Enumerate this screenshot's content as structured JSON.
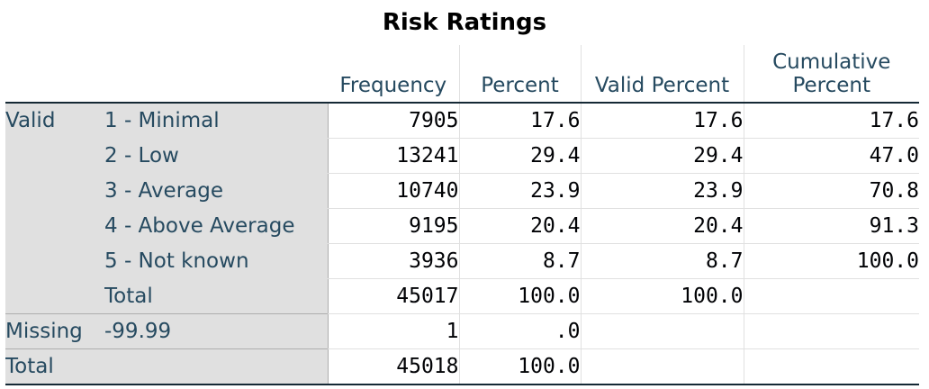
{
  "title": "Risk Ratings",
  "headers": [
    "Frequency",
    "Percent",
    "Valid Percent",
    "Cumulative",
    "Percent"
  ],
  "groups": {
    "valid": "Valid",
    "missing": "Missing",
    "total": "Total"
  },
  "rows": [
    {
      "label": "1 - Minimal",
      "frequency": "7905",
      "percent": "17.6",
      "valid_percent": "17.6",
      "cumulative_percent": "17.6"
    },
    {
      "label": "2 - Low",
      "frequency": "13241",
      "percent": "29.4",
      "valid_percent": "29.4",
      "cumulative_percent": "47.0"
    },
    {
      "label": "3 - Average",
      "frequency": "10740",
      "percent": "23.9",
      "valid_percent": "23.9",
      "cumulative_percent": "70.8"
    },
    {
      "label": "4 - Above Average",
      "frequency": "9195",
      "percent": "20.4",
      "valid_percent": "20.4",
      "cumulative_percent": "91.3"
    },
    {
      "label": "5 - Not known",
      "frequency": "3936",
      "percent": "8.7",
      "valid_percent": "8.7",
      "cumulative_percent": "100.0"
    },
    {
      "label": "Total",
      "frequency": "45017",
      "percent": "100.0",
      "valid_percent": "100.0",
      "cumulative_percent": ""
    }
  ],
  "missing_row": {
    "label": "-99.99",
    "frequency": "1",
    "percent": ".0"
  },
  "total_row": {
    "frequency": "45018",
    "percent": "100.0"
  }
}
